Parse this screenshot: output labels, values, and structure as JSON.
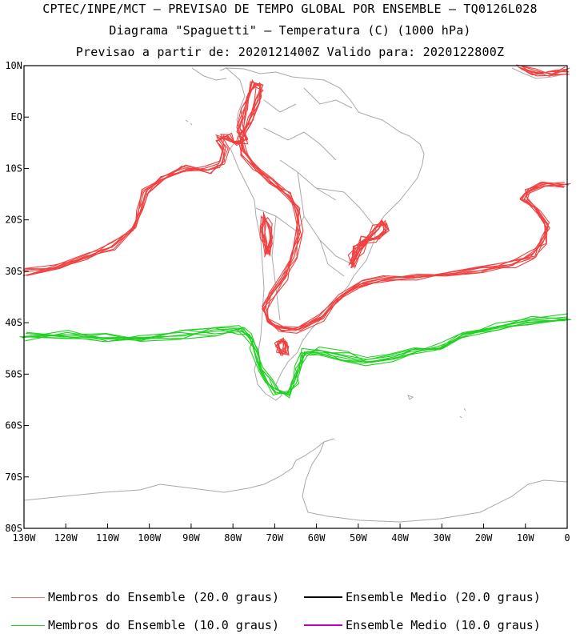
{
  "titles": {
    "line1": "CPTEC/INPE/MCT – PREVISAO DE TEMPO GLOBAL POR ENSEMBLE – TQ0126L028",
    "line2": "Diagrama \"Spaguetti\" – Temperatura (C) (1000 hPa)",
    "line3": "Previsao a partir de: 2020121400Z  Valido para: 2020122800Z"
  },
  "axes": {
    "lat_labels": [
      "10N",
      "EQ",
      "10S",
      "20S",
      "30S",
      "40S",
      "50S",
      "60S",
      "70S",
      "80S"
    ],
    "lon_labels": [
      "130W",
      "120W",
      "110W",
      "100W",
      "90W",
      "80W",
      "70W",
      "60W",
      "50W",
      "40W",
      "30W",
      "20W",
      "10W",
      "0"
    ]
  },
  "colors": {
    "warm_members": "#f04040",
    "cold_members": "#20d020",
    "mean_20": "#000000",
    "mean_10": "#c000c0",
    "coast": "#a8a8a8"
  },
  "legend": [
    {
      "label": "Membros do Ensemble (20.0 graus)",
      "color": "#f07070"
    },
    {
      "label": "Ensemble Medio (20.0 graus)",
      "color": "#000000"
    },
    {
      "label": "Membros do Ensemble (10.0 graus)",
      "color": "#20d020"
    },
    {
      "label": "Ensemble Medio (10.0 graus)",
      "color": "#c000c0"
    }
  ]
}
